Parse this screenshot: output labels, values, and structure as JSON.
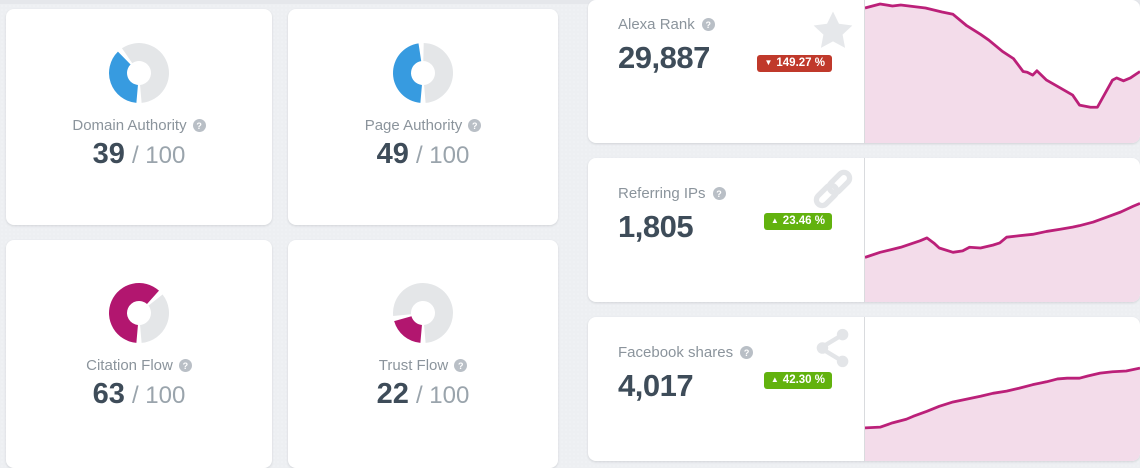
{
  "theme": {
    "accent_blue": "#379be0",
    "accent_magenta": "#b2166f",
    "donut_track": "#e4e6e8",
    "chart_line": "#bb2079",
    "chart_fill": "#f3dcea",
    "badge_red": "#c0392b",
    "badge_green": "#62b20e",
    "number_color": "#3e4c59",
    "label_color": "#8b949c",
    "background": "#edeff2"
  },
  "icons": {
    "help": "?",
    "alexa": "star",
    "referring_ips": "chain-link",
    "facebook": "share-nodes"
  },
  "gauges": [
    {
      "label": "Domain Authority",
      "value": 39,
      "max": 100,
      "value_str": "39",
      "out_of": "/ 100",
      "color": "#379be0"
    },
    {
      "label": "Page Authority",
      "value": 49,
      "max": 100,
      "value_str": "49",
      "out_of": "/ 100",
      "color": "#379be0"
    },
    {
      "label": "Citation Flow",
      "value": 63,
      "max": 100,
      "value_str": "63",
      "out_of": "/ 100",
      "color": "#b2166f"
    },
    {
      "label": "Trust Flow",
      "value": 22,
      "max": 100,
      "value_str": "22",
      "out_of": "/ 100",
      "color": "#b2166f"
    }
  ],
  "metrics": [
    {
      "label": "Alexa Rank",
      "value": "29,887",
      "arrow": "▼",
      "change": "149.27 %",
      "direction": "down",
      "icon": "star"
    },
    {
      "label": "Referring IPs",
      "value": "1,805",
      "arrow": "▲",
      "change": "23.46 %",
      "direction": "up",
      "icon": "chain-link"
    },
    {
      "label": "Facebook shares",
      "value": "4,017",
      "arrow": "▲",
      "change": "42.30 %",
      "direction": "up",
      "icon": "share-nodes"
    }
  ],
  "chart_data": [
    {
      "type": "area",
      "title": "Alexa Rank trend",
      "legend": "none",
      "grid": false,
      "line_color": "#bb2079",
      "fill_color": "#f3dcea",
      "points_pct": [
        [
          0,
          5.6
        ],
        [
          5.5,
          2.8
        ],
        [
          10,
          4.2
        ],
        [
          13,
          3.5
        ],
        [
          22,
          5.6
        ],
        [
          28,
          8.4
        ],
        [
          32,
          10
        ],
        [
          37,
          18
        ],
        [
          42,
          24
        ],
        [
          45,
          28
        ],
        [
          50,
          36
        ],
        [
          54,
          41
        ],
        [
          57.5,
          50
        ],
        [
          59,
          50.5
        ],
        [
          61,
          52.5
        ],
        [
          62.5,
          49.5
        ],
        [
          66,
          56
        ],
        [
          71,
          61.5
        ],
        [
          75.5,
          66.5
        ],
        [
          78,
          73.5
        ],
        [
          82,
          75
        ],
        [
          84.5,
          75
        ],
        [
          90,
          56
        ],
        [
          91.5,
          54.5
        ],
        [
          94,
          56.5
        ],
        [
          96.5,
          54.5
        ],
        [
          100,
          50
        ]
      ]
    },
    {
      "type": "area",
      "title": "Referring IPs trend",
      "legend": "none",
      "grid": false,
      "line_color": "#bb2079",
      "fill_color": "#f3dcea",
      "points_pct": [
        [
          0,
          69
        ],
        [
          5.5,
          65.5
        ],
        [
          13,
          62
        ],
        [
          20,
          57.5
        ],
        [
          22.5,
          55.5
        ],
        [
          25,
          59
        ],
        [
          27,
          62.5
        ],
        [
          32,
          65.5
        ],
        [
          35.5,
          64.5
        ],
        [
          38,
          62
        ],
        [
          42,
          62.5
        ],
        [
          46.5,
          60.5
        ],
        [
          49,
          59
        ],
        [
          51.5,
          55
        ],
        [
          56,
          54
        ],
        [
          61,
          53
        ],
        [
          66,
          51
        ],
        [
          71,
          49.5
        ],
        [
          75.5,
          48
        ],
        [
          78,
          47
        ],
        [
          83,
          44.5
        ],
        [
          88,
          41
        ],
        [
          93,
          37.5
        ],
        [
          97.5,
          33.5
        ],
        [
          100,
          31.5
        ]
      ]
    },
    {
      "type": "area",
      "title": "Facebook shares trend",
      "legend": "none",
      "grid": false,
      "line_color": "#bb2079",
      "fill_color": "#f3dcea",
      "points_pct": [
        [
          0,
          77
        ],
        [
          5.5,
          76.5
        ],
        [
          10,
          73.5
        ],
        [
          15,
          71
        ],
        [
          17.5,
          69
        ],
        [
          22.5,
          65.5
        ],
        [
          27,
          62
        ],
        [
          32,
          59
        ],
        [
          37,
          57
        ],
        [
          42,
          55
        ],
        [
          46.5,
          53
        ],
        [
          51.5,
          51.5
        ],
        [
          56,
          49.5
        ],
        [
          61,
          47
        ],
        [
          66,
          45
        ],
        [
          70,
          43
        ],
        [
          73.5,
          42.5
        ],
        [
          78,
          42.5
        ],
        [
          81,
          41
        ],
        [
          85.5,
          39
        ],
        [
          90,
          38
        ],
        [
          95,
          37.5
        ],
        [
          100,
          35.5
        ]
      ]
    }
  ]
}
